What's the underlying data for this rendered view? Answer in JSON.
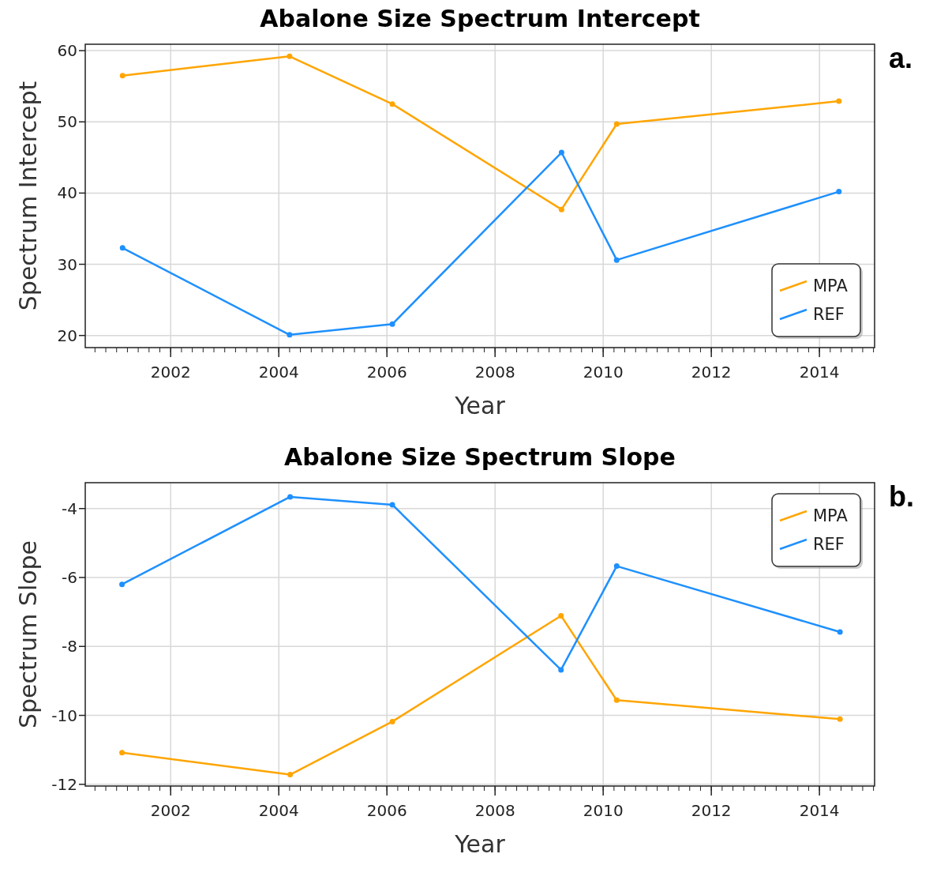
{
  "chart_data": [
    {
      "type": "line",
      "title": "Abalone Size Spectrum Intercept",
      "xlabel": "Year",
      "ylabel": "Spectrum Intercept",
      "annotations": [
        "a."
      ],
      "x": [
        2001.11,
        2004.2,
        2006.1,
        2009.23,
        2010.25,
        2014.36
      ],
      "xlim": [
        2000.42,
        2015.02
      ],
      "xticks": [
        2002,
        2004,
        2006,
        2008,
        2010,
        2012,
        2014
      ],
      "ylim": [
        18.3,
        60.9
      ],
      "yticks": [
        20,
        30,
        40,
        50,
        60
      ],
      "grid": true,
      "legend": "bottom right",
      "marker": "circle",
      "series": [
        {
          "name": "MPA",
          "color": "#ffa500",
          "values": [
            56.5,
            59.2,
            52.5,
            37.7,
            49.7,
            52.9
          ]
        },
        {
          "name": "REF",
          "color": "#1e90ff",
          "values": [
            32.3,
            20.1,
            21.6,
            45.7,
            30.6,
            40.2
          ]
        }
      ]
    },
    {
      "type": "line",
      "title": "Abalone Size Spectrum Slope",
      "xlabel": "Year",
      "ylabel": "Spectrum Slope",
      "annotations": [
        "b."
      ],
      "x": [
        2001.1,
        2004.21,
        2006.1,
        2009.22,
        2010.25,
        2014.38
      ],
      "xlim": [
        2000.42,
        2015.02
      ],
      "xticks": [
        2002,
        2004,
        2006,
        2008,
        2010,
        2012,
        2014
      ],
      "ylim": [
        -12.05,
        -3.25
      ],
      "yticks": [
        -4,
        -6,
        -8,
        -10,
        -12
      ],
      "grid": true,
      "legend": "top right",
      "marker": "circle",
      "series": [
        {
          "name": "MPA",
          "color": "#ffa500",
          "values": [
            -11.08,
            -11.72,
            -10.18,
            -7.11,
            -9.56,
            -10.11
          ]
        },
        {
          "name": "REF",
          "color": "#1e90ff",
          "values": [
            -6.2,
            -3.66,
            -3.89,
            -8.68,
            -5.67,
            -7.58
          ]
        }
      ]
    }
  ]
}
